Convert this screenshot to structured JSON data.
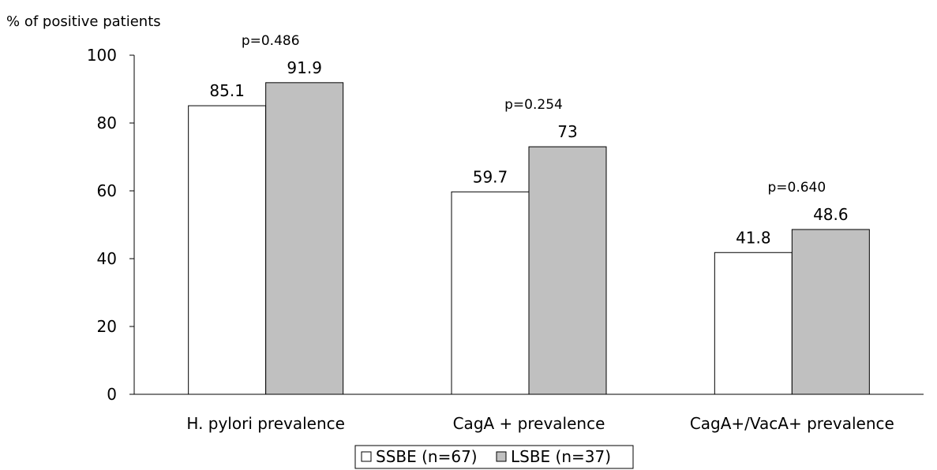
{
  "chart_data": {
    "type": "bar",
    "title": "",
    "ylabel": "% of positive patients",
    "xlabel": "",
    "ylim": [
      0,
      100
    ],
    "yticks": [
      0,
      20,
      40,
      60,
      80,
      100
    ],
    "grid": false,
    "legend_position": "bottom",
    "categories": [
      "H. pylori prevalence",
      "CagA + prevalence",
      "CagA+/VacA+ prevalence"
    ],
    "series": [
      {
        "name": "SSBE (n=67)",
        "values": [
          85.1,
          59.7,
          41.8
        ],
        "labels": [
          "85.1",
          "59.7",
          "41.8"
        ],
        "color": "#ffffff"
      },
      {
        "name": "LSBE (n=37)",
        "values": [
          91.9,
          73,
          48.6
        ],
        "labels": [
          "91.9",
          "73",
          "48.6"
        ],
        "color": "#c0c0c0"
      }
    ],
    "annotations": [
      "p=0.486",
      "p=0.254",
      "p=0.640"
    ]
  }
}
